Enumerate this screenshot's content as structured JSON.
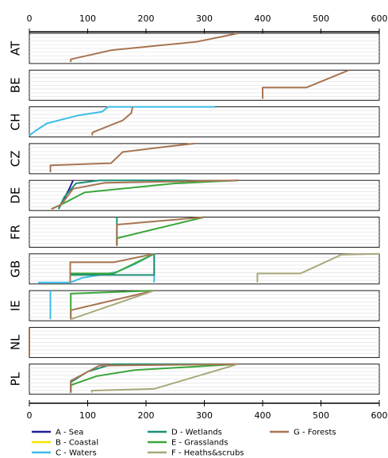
{
  "chart_data": {
    "type": "line",
    "xlim": [
      0,
      600
    ],
    "x_ticks": [
      "0",
      "100",
      "200",
      "300",
      "400",
      "500",
      "600"
    ],
    "panels": [
      "AT",
      "BE",
      "CH",
      "CZ",
      "DE",
      "FR",
      "GB",
      "IE",
      "NL",
      "PL"
    ],
    "legend": [
      {
        "key": "A",
        "label": "A - Sea",
        "color": "#20209a"
      },
      {
        "key": "B",
        "label": "B - Coastal",
        "color": "#f2e600"
      },
      {
        "key": "C",
        "label": "C - Waters",
        "color": "#3cbce8"
      },
      {
        "key": "D",
        "label": "D - Wetlands",
        "color": "#1e9078"
      },
      {
        "key": "E",
        "label": "E - Grasslands",
        "color": "#3aa63a"
      },
      {
        "key": "F",
        "label": "F - Heaths&scrubs",
        "color": "#a8a87a"
      },
      {
        "key": "G",
        "label": "G - Forests",
        "color": "#a87452"
      }
    ],
    "series": [
      {
        "panel": "AT",
        "cat": "G",
        "points": [
          [
            71,
            0.05
          ],
          [
            71,
            0.14
          ],
          [
            140,
            0.44
          ],
          [
            287,
            0.72
          ],
          [
            358,
            1.0
          ]
        ]
      },
      {
        "panel": "BE",
        "cat": "G",
        "points": [
          [
            400,
            0.05
          ],
          [
            400,
            0.42
          ],
          [
            475,
            0.42
          ],
          [
            548,
            1.0
          ]
        ]
      },
      {
        "panel": "CH",
        "cat": "C",
        "points": [
          [
            0,
            0.05
          ],
          [
            10,
            0.2
          ],
          [
            30,
            0.45
          ],
          [
            60,
            0.6
          ],
          [
            85,
            0.72
          ],
          [
            125,
            0.84
          ],
          [
            135,
            1.0
          ],
          [
            318,
            1.0
          ]
        ]
      },
      {
        "panel": "CH",
        "cat": "G",
        "points": [
          [
            108,
            0.05
          ],
          [
            108,
            0.15
          ],
          [
            160,
            0.55
          ],
          [
            175,
            0.8
          ],
          [
            177,
            1.0
          ]
        ]
      },
      {
        "panel": "CZ",
        "cat": "G",
        "points": [
          [
            36,
            0.05
          ],
          [
            36,
            0.28
          ],
          [
            140,
            0.35
          ],
          [
            160,
            0.72
          ],
          [
            235,
            0.9
          ],
          [
            283,
            1.0
          ]
        ]
      },
      {
        "panel": "DE",
        "cat": "A",
        "points": [
          [
            50,
            0.05
          ],
          [
            68,
            0.7
          ],
          [
            75,
            1.0
          ]
        ]
      },
      {
        "panel": "DE",
        "cat": "D",
        "points": [
          [
            50,
            0.05
          ],
          [
            60,
            0.45
          ],
          [
            80,
            0.9
          ],
          [
            120,
            1.0
          ],
          [
            270,
            1.0
          ]
        ]
      },
      {
        "panel": "DE",
        "cat": "E",
        "points": [
          [
            38,
            0.05
          ],
          [
            60,
            0.25
          ],
          [
            95,
            0.6
          ],
          [
            250,
            0.9
          ],
          [
            358,
            1.0
          ]
        ]
      },
      {
        "panel": "DE",
        "cat": "G",
        "points": [
          [
            38,
            0.05
          ],
          [
            55,
            0.2
          ],
          [
            75,
            0.72
          ],
          [
            130,
            0.92
          ],
          [
            358,
            1.0
          ]
        ]
      },
      {
        "panel": "FR",
        "cat": "D",
        "points": [
          [
            150,
            0.05
          ],
          [
            150,
            1.0
          ]
        ]
      },
      {
        "panel": "FR",
        "cat": "E",
        "points": [
          [
            150,
            0.05
          ],
          [
            150,
            0.3
          ],
          [
            300,
            1.0
          ]
        ]
      },
      {
        "panel": "FR",
        "cat": "G",
        "points": [
          [
            150,
            0.05
          ],
          [
            150,
            0.75
          ],
          [
            300,
            1.0
          ]
        ]
      },
      {
        "panel": "GB",
        "cat": "C",
        "points": [
          [
            15,
            0.05
          ],
          [
            70,
            0.05
          ],
          [
            90,
            0.2
          ],
          [
            120,
            0.3
          ],
          [
            150,
            0.4
          ],
          [
            180,
            0.65
          ],
          [
            214,
            1.0
          ],
          [
            214,
            0.05
          ]
        ]
      },
      {
        "panel": "GB",
        "cat": "D",
        "points": [
          [
            70,
            0.05
          ],
          [
            70,
            0.3
          ],
          [
            214,
            0.3
          ],
          [
            214,
            1.0
          ]
        ]
      },
      {
        "panel": "GB",
        "cat": "E",
        "points": [
          [
            70,
            0.05
          ],
          [
            70,
            0.35
          ],
          [
            145,
            0.35
          ],
          [
            214,
            1.0
          ]
        ]
      },
      {
        "panel": "GB",
        "cat": "G",
        "points": [
          [
            70,
            0.05
          ],
          [
            70,
            0.72
          ],
          [
            145,
            0.72
          ],
          [
            214,
            1.0
          ]
        ]
      },
      {
        "panel": "GB",
        "cat": "F",
        "points": [
          [
            391,
            0.05
          ],
          [
            391,
            0.35
          ],
          [
            465,
            0.35
          ],
          [
            535,
            0.97
          ],
          [
            600,
            1.0
          ]
        ]
      },
      {
        "panel": "IE",
        "cat": "C",
        "points": [
          [
            36,
            0.05
          ],
          [
            36,
            1.0
          ]
        ]
      },
      {
        "panel": "IE",
        "cat": "E",
        "points": [
          [
            71,
            0.05
          ],
          [
            71,
            0.9
          ],
          [
            214,
            1.0
          ]
        ]
      },
      {
        "panel": "IE",
        "cat": "G",
        "points": [
          [
            71,
            0.05
          ],
          [
            71,
            0.35
          ],
          [
            214,
            1.0
          ]
        ]
      },
      {
        "panel": "IE",
        "cat": "F",
        "points": [
          [
            71,
            0.05
          ],
          [
            214,
            1.0
          ]
        ]
      },
      {
        "panel": "NL",
        "cat": "G",
        "points": [
          [
            0,
            0.05
          ],
          [
            0,
            1.0
          ]
        ]
      },
      {
        "panel": "PL",
        "cat": "D",
        "points": [
          [
            71,
            0.05
          ],
          [
            71,
            0.4
          ],
          [
            100,
            0.75
          ],
          [
            143,
            1.0
          ],
          [
            358,
            1.0
          ]
        ]
      },
      {
        "panel": "PL",
        "cat": "E",
        "points": [
          [
            71,
            0.05
          ],
          [
            71,
            0.3
          ],
          [
            115,
            0.6
          ],
          [
            180,
            0.8
          ],
          [
            358,
            1.0
          ]
        ]
      },
      {
        "panel": "PL",
        "cat": "G",
        "points": [
          [
            71,
            0.05
          ],
          [
            71,
            0.45
          ],
          [
            120,
            0.95
          ],
          [
            358,
            1.0
          ]
        ]
      },
      {
        "panel": "PL",
        "cat": "F",
        "points": [
          [
            107,
            0.05
          ],
          [
            107,
            0.12
          ],
          [
            214,
            0.18
          ],
          [
            358,
            1.0
          ]
        ]
      }
    ]
  }
}
